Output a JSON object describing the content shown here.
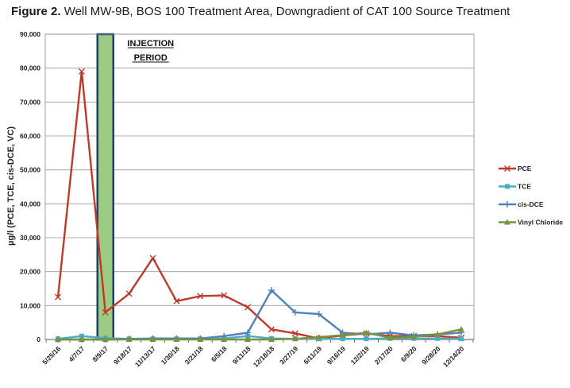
{
  "figure": {
    "label": "Figure 2.",
    "title": "Well MW-9B, BOS 100 Treatment Area, Downgradient of CAT 100 Source Treatment"
  },
  "chart_data": {
    "type": "line",
    "ylabel": "µg/l (PCE, TCE, cis-DCE, VC)",
    "xlabel": "",
    "ylim": [
      0,
      90000
    ],
    "yticks": [
      0,
      10000,
      20000,
      30000,
      40000,
      50000,
      60000,
      70000,
      80000,
      90000
    ],
    "ytick_labels": [
      "0",
      "10,000",
      "20,000",
      "30,000",
      "40,000",
      "50,000",
      "60,000",
      "70,000",
      "80,000",
      "90,000"
    ],
    "categories": [
      "5/25/16",
      "4/7/17",
      "8/9/17",
      "9/18/17",
      "11/13/17",
      "1/30/18",
      "3/21/18",
      "6/5/18",
      "9/11/18",
      "12/18/18",
      "3/27/19",
      "6/11/19",
      "9/16/19",
      "12/2/19",
      "2/17/20",
      "6/9/20",
      "9/28/20",
      "12/14/20"
    ],
    "grid": "horizontal",
    "legend_position": "right",
    "annotation": {
      "label_line1": "INJECTION",
      "label_line2": "PERIOD",
      "category_index": 2,
      "fill_color": "#9ccb86",
      "border_color": "#1f3f6e"
    },
    "series": [
      {
        "name": "PCE",
        "color": "#c0392b",
        "marker": "x",
        "values": [
          12500,
          79000,
          8000,
          13500,
          24000,
          11300,
          12800,
          13000,
          9500,
          3000,
          1800,
          300,
          1200,
          1800,
          1000,
          1000,
          1000,
          500
        ]
      },
      {
        "name": "TCE",
        "color": "#4bacc6",
        "marker": "square",
        "values": [
          200,
          1000,
          400,
          200,
          200,
          200,
          200,
          300,
          1000,
          300,
          200,
          200,
          200,
          200,
          300,
          300,
          300,
          200
        ]
      },
      {
        "name": "cis-DCE",
        "color": "#4f81bd",
        "marker": "plus",
        "values": [
          0,
          0,
          0,
          200,
          300,
          300,
          300,
          1000,
          2000,
          14500,
          8000,
          7500,
          2000,
          1500,
          2000,
          1200,
          1500,
          2000
        ]
      },
      {
        "name": "Vinyl Chloride",
        "color": "#77933c",
        "marker": "triangle",
        "values": [
          0,
          0,
          0,
          0,
          0,
          0,
          0,
          0,
          0,
          0,
          200,
          700,
          1300,
          2000,
          500,
          800,
          1500,
          3000
        ]
      }
    ]
  }
}
